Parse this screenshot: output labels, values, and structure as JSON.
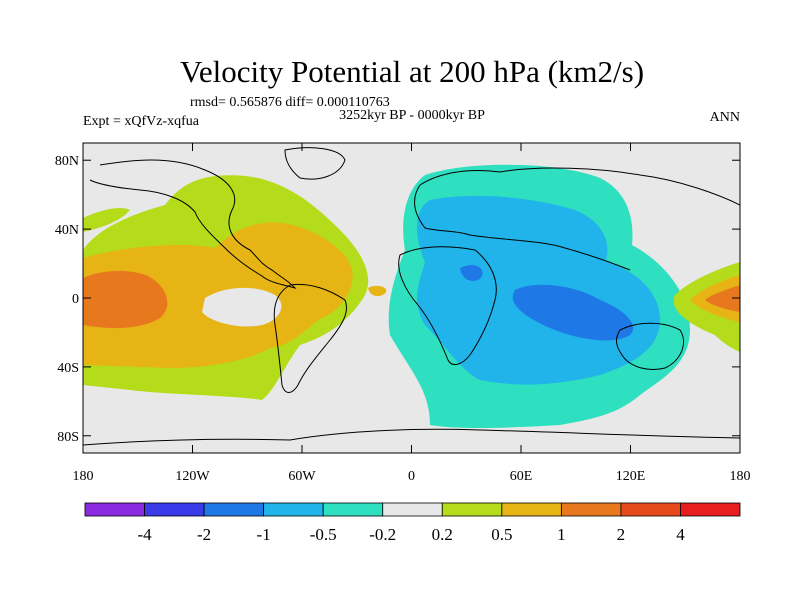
{
  "chart_data": {
    "type": "heatmap",
    "title": "Velocity Potential at 200 hPa (km2/s)",
    "rmsd_line": "rmsd= 0.565876 diff= 0.000110763",
    "left_label": "Expt = xQfVz-xqfua",
    "center_label": "3252kyr BP - 0000kyr BP",
    "right_label": "ANN",
    "x_ticks": [
      "180",
      "120W",
      "60W",
      "0",
      "60E",
      "120E",
      "180"
    ],
    "x_tick_values": [
      -180,
      -120,
      -60,
      0,
      60,
      120,
      180
    ],
    "y_ticks": [
      "80N",
      "40N",
      "0",
      "40S",
      "80S"
    ],
    "y_tick_values": [
      80,
      40,
      0,
      -40,
      -80
    ],
    "xlim": [
      -180,
      180
    ],
    "ylim": [
      -90,
      90
    ],
    "contour_levels": [
      -4,
      -2,
      -1,
      -0.5,
      -0.2,
      0.2,
      0.5,
      1,
      2,
      4
    ],
    "colorbar_labels": [
      "-4",
      "-2",
      "-1",
      "-0.5",
      "-0.2",
      "0.2",
      "0.5",
      "1",
      "2",
      "4"
    ],
    "colorbar_colors": [
      "#8a2be2",
      "#3a3ae8",
      "#1e78e6",
      "#20b4ea",
      "#2ee0c0",
      "#e8e8e8",
      "#b4dc1a",
      "#e6b414",
      "#e8781e",
      "#e64a1c",
      "#e61e1e"
    ],
    "regions": [
      {
        "level": "0.2 to 0.5",
        "lon": [
          -140,
          30
        ],
        "lat": [
          -50,
          75
        ],
        "desc": "positive lobe over Pacific/Americas"
      },
      {
        "level": "0.5 to 1",
        "lon": [
          -180,
          -20
        ],
        "lat": [
          -40,
          40
        ],
        "desc": "positive core over eastern Pacific and Americas"
      },
      {
        "level": "1 to 2",
        "lon": [
          -180,
          -135
        ],
        "lat": [
          -20,
          15
        ],
        "desc": "maximum over central Pacific"
      },
      {
        "level": "-0.5 to -0.2",
        "lon": [
          -5,
          145
        ],
        "lat": [
          -65,
          70
        ],
        "desc": "negative lobe over Africa, Eurasia, Indian Ocean"
      },
      {
        "level": "-1 to -0.5",
        "lon": [
          -5,
          115
        ],
        "lat": [
          -40,
          45
        ],
        "desc": "negative core over Africa and Indian Ocean"
      },
      {
        "level": "-2 to -1",
        "lon": [
          25,
          100
        ],
        "lat": [
          -20,
          15
        ],
        "desc": "minimum over Indian Ocean"
      },
      {
        "level": "0.2 to 1",
        "lon": [
          145,
          180
        ],
        "lat": [
          -25,
          10
        ],
        "desc": "positive region western Pacific"
      }
    ]
  }
}
